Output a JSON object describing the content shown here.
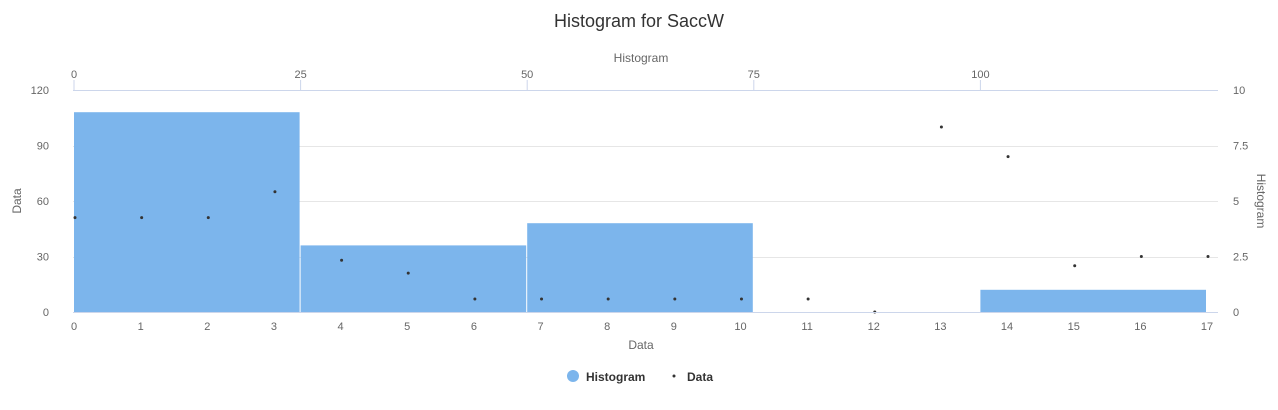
{
  "chart_data": {
    "type": "bar",
    "title": "Histogram for SaccW",
    "xlabel": "Data",
    "ylabel": "Data",
    "x2label": "Histogram",
    "y2label": "Histogram",
    "grid": true,
    "legend_placement": "bottom-center",
    "colors": {
      "histogram": "#7cb5ec",
      "data": "#333333"
    },
    "x_bottom": {
      "range": [
        0,
        17
      ],
      "ticks": [
        0,
        1,
        2,
        3,
        4,
        5,
        6,
        7,
        8,
        9,
        10,
        11,
        12,
        13,
        14,
        15,
        16,
        17
      ]
    },
    "y_left": {
      "range": [
        0,
        120
      ],
      "ticks": [
        0,
        30,
        60,
        90,
        120
      ]
    },
    "x_top": {
      "range": [
        0,
        125
      ],
      "ticks": [
        0,
        25,
        50,
        75,
        100
      ]
    },
    "y_right": {
      "range": [
        0,
        10
      ],
      "ticks": [
        0,
        2.5,
        5,
        7.5,
        10
      ]
    },
    "series": [
      {
        "name": "Histogram",
        "bins": [
          {
            "from": 0,
            "to": 3.4,
            "value": 108
          },
          {
            "from": 3.4,
            "to": 6.8,
            "value": 36
          },
          {
            "from": 6.8,
            "to": 10.2,
            "value": 48
          },
          {
            "from": 10.2,
            "to": 13.6,
            "value": 0
          },
          {
            "from": 13.6,
            "to": 17,
            "value": 12
          }
        ]
      },
      {
        "name": "Data",
        "points": [
          {
            "x": 0,
            "y": 51
          },
          {
            "x": 1,
            "y": 51
          },
          {
            "x": 2,
            "y": 51
          },
          {
            "x": 3,
            "y": 65
          },
          {
            "x": 4,
            "y": 28
          },
          {
            "x": 5,
            "y": 21
          },
          {
            "x": 6,
            "y": 7
          },
          {
            "x": 7,
            "y": 7
          },
          {
            "x": 8,
            "y": 7
          },
          {
            "x": 9,
            "y": 7
          },
          {
            "x": 10,
            "y": 7
          },
          {
            "x": 11,
            "y": 7
          },
          {
            "x": 12,
            "y": 0
          },
          {
            "x": 13,
            "y": 100
          },
          {
            "x": 14,
            "y": 84
          },
          {
            "x": 15,
            "y": 25
          },
          {
            "x": 16,
            "y": 30
          },
          {
            "x": 17,
            "y": 30
          }
        ]
      }
    ]
  }
}
